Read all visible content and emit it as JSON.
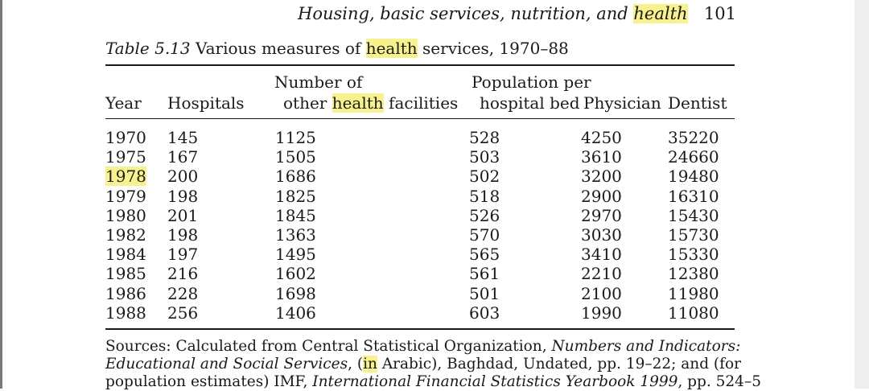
{
  "header": {
    "title_before": "Housing, basic services, nutrition, and ",
    "title_highlight": "health",
    "page_number": "101"
  },
  "caption": {
    "label": "Table 5.13",
    "text_before": " Various measures of ",
    "text_highlight": "health",
    "text_after": " services, 1970–88"
  },
  "columns": {
    "year": "Year",
    "hospitals": "Hospitals",
    "facilities_line1": "Number of",
    "facilities_line2_before": "other ",
    "facilities_line2_highlight": "health",
    "facilities_line2_after": " facilities",
    "population_per": "Population per",
    "hospital_bed": "hospital bed",
    "physician": "Physician",
    "dentist": "Dentist"
  },
  "rows": [
    [
      "1970",
      "145",
      "1125",
      "528",
      "4250",
      "35220"
    ],
    [
      "1975",
      "167",
      "1505",
      "503",
      "3610",
      "24660"
    ],
    [
      "1978",
      "200",
      "1686",
      "502",
      "3200",
      "19480"
    ],
    [
      "1979",
      "198",
      "1825",
      "518",
      "2900",
      "16310"
    ],
    [
      "1980",
      "201",
      "1845",
      "526",
      "2970",
      "15430"
    ],
    [
      "1982",
      "198",
      "1363",
      "570",
      "3030",
      "15730"
    ],
    [
      "1984",
      "197",
      "1495",
      "565",
      "3410",
      "15330"
    ],
    [
      "1985",
      "216",
      "1602",
      "561",
      "2210",
      "12380"
    ],
    [
      "1986",
      "228",
      "1698",
      "501",
      "2100",
      "11980"
    ],
    [
      "1988",
      "256",
      "1406",
      "603",
      "1990",
      "11080"
    ]
  ],
  "sources": {
    "l1a": "Sources: Calculated from Central Statistical Organization, ",
    "l1b": "Numbers and Indicators:",
    "l2a": "Educational and Social Services",
    "l2b": ", (",
    "l2c": "in",
    "l2d": " Arabic), Baghdad, Undated, pp. 19–22; and (for",
    "l3a": "population estimates) IMF, ",
    "l3b": "International Financial Statistics Yearbook 1999",
    "l3c": ", pp. 524–5"
  },
  "highlight_color": "#f7f28a"
}
